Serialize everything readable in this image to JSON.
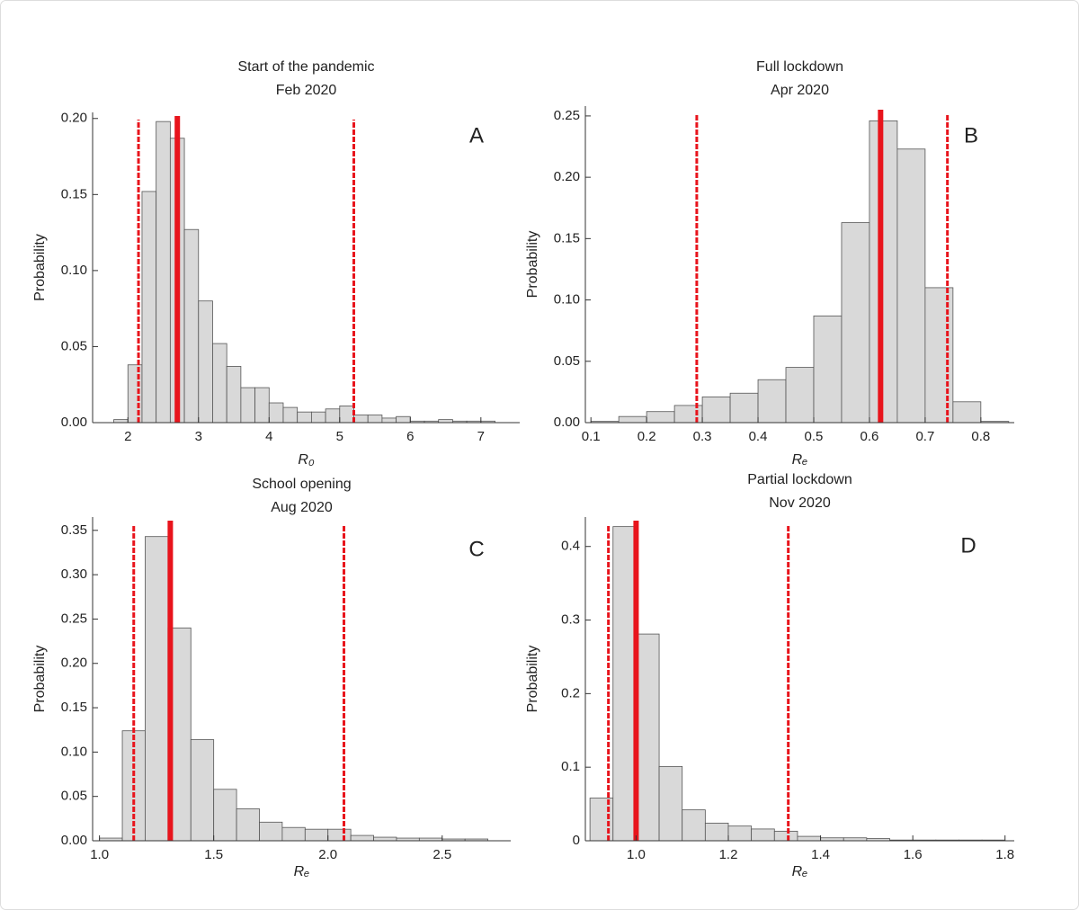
{
  "chart_data": [
    {
      "type": "histogram",
      "title": "Start of the pandemic",
      "subtitle": "Feb 2020",
      "panel_label": "A",
      "xlabel": "R₀",
      "ylabel": "Probability",
      "bins": [
        1.8,
        2.0,
        2.2,
        2.4,
        2.6,
        2.8,
        3.0,
        3.2,
        3.4,
        3.6,
        3.8,
        4.0,
        4.2,
        4.4,
        4.6,
        4.8,
        5.0,
        5.2,
        5.4,
        5.6,
        5.8,
        6.0,
        6.2,
        6.4,
        6.6,
        6.8,
        7.0,
        7.2
      ],
      "values": [
        0.002,
        0.038,
        0.152,
        0.198,
        0.187,
        0.127,
        0.08,
        0.052,
        0.037,
        0.023,
        0.023,
        0.013,
        0.01,
        0.007,
        0.007,
        0.009,
        0.011,
        0.005,
        0.005,
        0.003,
        0.004,
        0.001,
        0.001,
        0.002,
        0.001,
        0.001,
        0.001
      ],
      "color": "#d9d9d9",
      "xlim": [
        1.5,
        7.55
      ],
      "xticks": [
        2,
        3,
        4,
        5,
        6,
        7
      ],
      "ylim": [
        0,
        0.204
      ],
      "yticks": [
        {
          "value": 0,
          "label": "0.00"
        },
        {
          "value": 0.05,
          "label": "0.05"
        },
        {
          "value": 0.1,
          "label": "0.10"
        },
        {
          "value": 0.15,
          "label": "0.15"
        },
        {
          "value": 0.2,
          "label": "0.20"
        }
      ],
      "lines_color": "#e8141c",
      "lines": [
        {
          "value": 2.15,
          "style": "dashed"
        },
        {
          "value": 2.7,
          "style": "solid"
        },
        {
          "value": 5.2,
          "style": "dashed"
        }
      ]
    },
    {
      "type": "histogram",
      "title": "Full lockdown",
      "subtitle": "Apr 2020",
      "panel_label": "B",
      "xlabel": "Rₑ",
      "ylabel": "Probability",
      "bins": [
        0.1,
        0.15,
        0.2,
        0.25,
        0.3,
        0.35,
        0.4,
        0.45,
        0.5,
        0.55,
        0.6,
        0.65,
        0.7,
        0.75,
        0.8,
        0.85
      ],
      "values": [
        0.001,
        0.005,
        0.009,
        0.014,
        0.021,
        0.024,
        0.035,
        0.045,
        0.087,
        0.163,
        0.246,
        0.223,
        0.11,
        0.017,
        0.001
      ],
      "color": "#d9d9d9",
      "xlim": [
        0.09,
        0.86
      ],
      "xticks": [
        0.1,
        0.2,
        0.3,
        0.4,
        0.5,
        0.6,
        0.7,
        0.8
      ],
      "ylim": [
        0,
        0.258
      ],
      "yticks": [
        {
          "value": 0,
          "label": "0.00"
        },
        {
          "value": 0.05,
          "label": "0.05"
        },
        {
          "value": 0.1,
          "label": "0.10"
        },
        {
          "value": 0.15,
          "label": "0.15"
        },
        {
          "value": 0.2,
          "label": "0.20"
        },
        {
          "value": 0.25,
          "label": "0.25"
        }
      ],
      "lines_color": "#e8141c",
      "lines": [
        {
          "value": 0.29,
          "style": "dashed"
        },
        {
          "value": 0.62,
          "style": "solid"
        },
        {
          "value": 0.74,
          "style": "dashed"
        }
      ]
    },
    {
      "type": "histogram",
      "title": "School opening",
      "subtitle": "Aug 2020",
      "panel_label": "C",
      "xlabel": "Rₑ",
      "ylabel": "Probability",
      "bins": [
        1.0,
        1.1,
        1.2,
        1.3,
        1.4,
        1.5,
        1.6,
        1.7,
        1.8,
        1.9,
        2.0,
        2.1,
        2.2,
        2.3,
        2.4,
        2.5,
        2.6,
        2.7
      ],
      "values": [
        0.003,
        0.124,
        0.343,
        0.24,
        0.114,
        0.058,
        0.036,
        0.021,
        0.015,
        0.013,
        0.013,
        0.006,
        0.004,
        0.003,
        0.003,
        0.002,
        0.002
      ],
      "color": "#d9d9d9",
      "xlim": [
        0.97,
        2.8
      ],
      "xticks": [
        {
          "value": 1,
          "label": "1.0"
        },
        1.5,
        {
          "value": 2,
          "label": "2.0"
        },
        2.5
      ],
      "ylim": [
        0,
        0.365
      ],
      "yticks": [
        {
          "value": 0,
          "label": "0.00"
        },
        {
          "value": 0.05,
          "label": "0.05"
        },
        {
          "value": 0.1,
          "label": "0.10"
        },
        {
          "value": 0.15,
          "label": "0.15"
        },
        {
          "value": 0.2,
          "label": "0.20"
        },
        {
          "value": 0.25,
          "label": "0.25"
        },
        {
          "value": 0.3,
          "label": "0.30"
        },
        {
          "value": 0.35,
          "label": "0.35"
        }
      ],
      "lines_color": "#e8141c",
      "lines": [
        {
          "value": 1.15,
          "style": "dashed"
        },
        {
          "value": 1.31,
          "style": "solid"
        },
        {
          "value": 2.07,
          "style": "dashed"
        }
      ]
    },
    {
      "type": "histogram",
      "title": "Partial lockdown",
      "subtitle": "Nov 2020",
      "panel_label": "D",
      "xlabel": "Rₑ",
      "ylabel": "Probability",
      "bins": [
        0.9,
        0.95,
        1.0,
        1.05,
        1.1,
        1.15,
        1.2,
        1.25,
        1.3,
        1.35,
        1.4,
        1.45,
        1.5,
        1.55,
        1.6,
        1.65,
        1.7,
        1.75,
        1.8
      ],
      "values": [
        0.058,
        0.427,
        0.281,
        0.101,
        0.042,
        0.024,
        0.02,
        0.016,
        0.013,
        0.006,
        0.004,
        0.004,
        0.003,
        0.001,
        0.001,
        0.001,
        0.001,
        0.001
      ],
      "color": "#d9d9d9",
      "xlim": [
        0.89,
        1.82
      ],
      "xticks": [
        {
          "value": 1,
          "label": "1.0"
        },
        1.2,
        1.4,
        1.6,
        1.8
      ],
      "ylim": [
        0,
        0.44
      ],
      "yticks": [
        0,
        0.1,
        0.2,
        0.3,
        0.4
      ],
      "lines_color": "#e8141c",
      "lines": [
        {
          "value": 0.94,
          "style": "dashed"
        },
        {
          "value": 1.0,
          "style": "solid"
        },
        {
          "value": 1.33,
          "style": "dashed"
        }
      ]
    }
  ]
}
